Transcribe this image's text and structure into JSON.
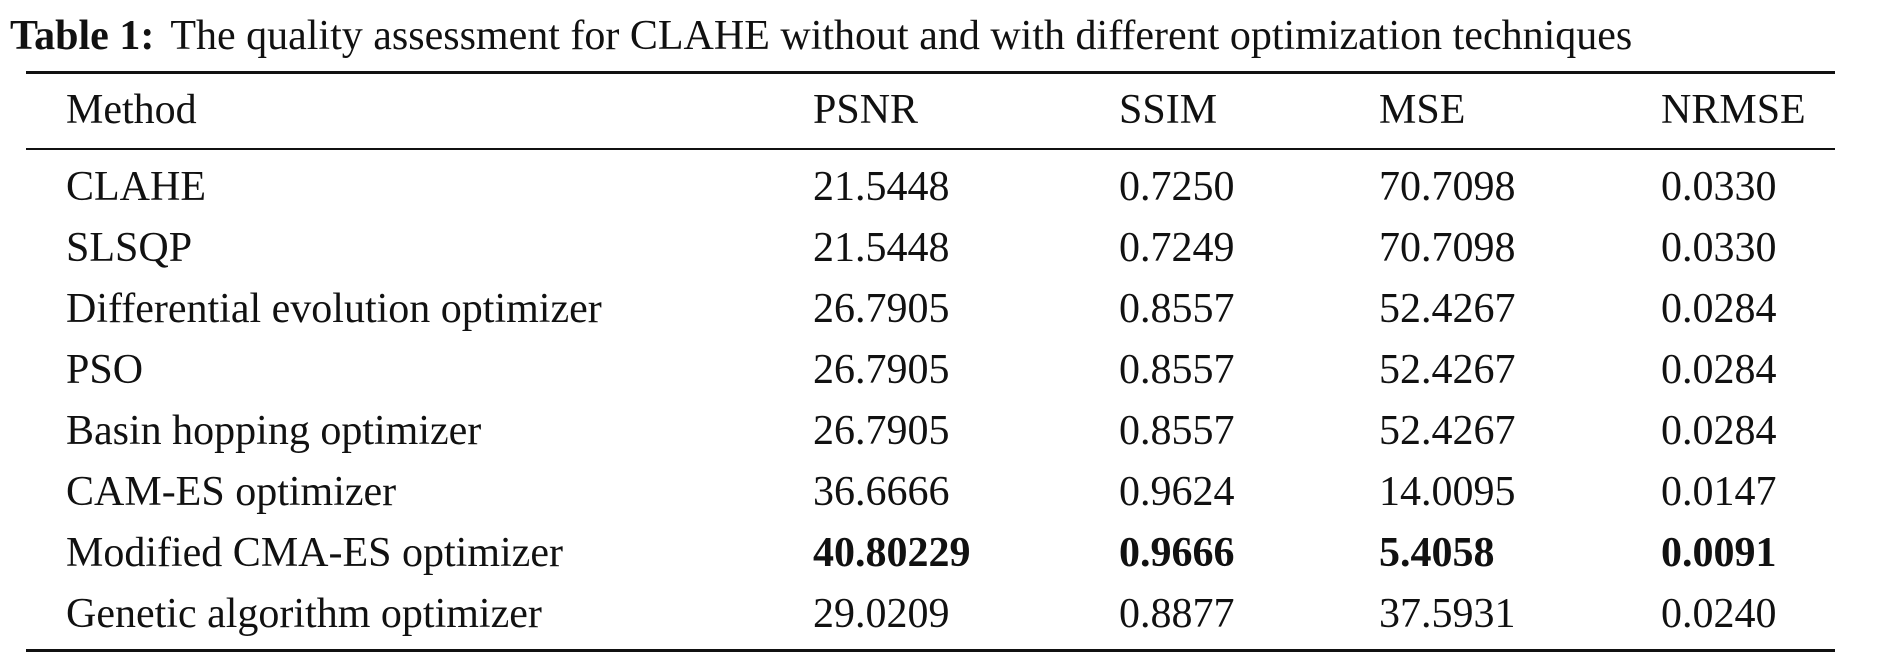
{
  "caption": {
    "label": "Table 1:",
    "text": "The quality assessment for CLAHE without and with different optimization techniques"
  },
  "table": {
    "header": [
      "Method",
      "PSNR",
      "SSIM",
      "MSE",
      "NRMSE"
    ],
    "rows": [
      [
        "CLAHE",
        "21.5448",
        "0.7250",
        "70.7098",
        "0.0330"
      ],
      [
        "SLSQP",
        "21.5448",
        "0.7249",
        "70.7098",
        "0.0330"
      ],
      [
        "Differential evolution optimizer",
        "26.7905",
        "0.8557",
        "52.4267",
        "0.0284"
      ],
      [
        "PSO",
        "26.7905",
        "0.8557",
        "52.4267",
        "0.0284"
      ],
      [
        "Basin hopping optimizer",
        "26.7905",
        "0.8557",
        "52.4267",
        "0.0284"
      ],
      [
        "CAM-ES optimizer",
        "36.6666",
        "0.9624",
        "14.0095",
        "0.0147"
      ],
      [
        "Modified CMA-ES optimizer",
        "40.80229",
        "0.9666",
        "5.4058",
        "0.0091"
      ],
      [
        "Genetic algorithm optimizer",
        "29.0209",
        "0.8877",
        "37.5931",
        "0.0240"
      ]
    ]
  }
}
